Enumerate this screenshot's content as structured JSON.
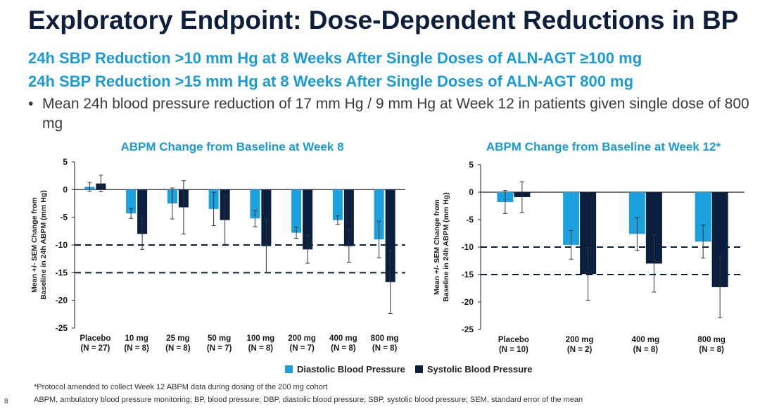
{
  "slide": {
    "title": "Exploratory Endpoint: Dose-Dependent Reductions in BP",
    "subtitle1": "24h SBP Reduction >10 mm Hg at 8 Weeks After Single Doses of ALN-AGT ≥100 mg",
    "subtitle2": "24h SBP Reduction >15 mm Hg at 8 Weeks After Single Doses of ALN-AGT 800 mg",
    "bullet_symbol": "•",
    "bullet": "Mean 24h blood pressure reduction of 17 mm Hg / 9 mm Hg at Week 12 in patients given single dose of 800 mg",
    "footnote": "*Protocol amended to collect Week 12 ABPM data during dosing of the 200 mg cohort",
    "abbreviations": "ABPM, ambulatory blood pressure monitoring; BP, blood pressure; DBP, diastolic blood pressure; SBP, systolic blood pressure; SEM, standard error of the mean",
    "page_number": "8"
  },
  "legend": {
    "diastolic": "Diastolic Blood Pressure",
    "systolic": "Systolic Blood Pressure"
  },
  "colors": {
    "diastolic": "#1ba1de",
    "systolic": "#0b1f3f",
    "title": "#0d1f3c",
    "accent": "#1a9ad6"
  },
  "chart_data": [
    {
      "type": "bar",
      "title": "ABPM Change from Baseline at Week 8",
      "ylabel_line1": "Mean +/- SEM Change from",
      "ylabel_line2": "Baseline in 24h ABPM (mm Hg)",
      "ylim": [
        -25,
        5
      ],
      "yticks": [
        5,
        0,
        -5,
        -10,
        -15,
        -20,
        -25
      ],
      "reference_lines": [
        -10,
        -15
      ],
      "categories": [
        "Placebo",
        "10 mg",
        "25 mg",
        "50 mg",
        "100 mg",
        "200 mg",
        "400 mg",
        "800 mg"
      ],
      "n_labels": [
        "(N = 27)",
        "(N = 8)",
        "(N = 8)",
        "(N = 7)",
        "(N = 8)",
        "(N = 7)",
        "(N = 8)",
        "(N = 8)"
      ],
      "series": [
        {
          "name": "Diastolic Blood Pressure",
          "values": [
            0.5,
            -4.3,
            -2.5,
            -3.5,
            -5.2,
            -7.8,
            -5.5,
            -9.0
          ],
          "sem": [
            0.8,
            0.9,
            2.8,
            3.0,
            1.5,
            1.0,
            0.8,
            3.3
          ]
        },
        {
          "name": "Systolic Blood Pressure",
          "values": [
            1.1,
            -8.0,
            -3.2,
            -5.5,
            -10.2,
            -10.8,
            -10.2,
            -16.7
          ],
          "sem": [
            1.5,
            2.8,
            4.8,
            4.4,
            4.8,
            2.5,
            2.9,
            5.7
          ]
        }
      ]
    },
    {
      "type": "bar",
      "title": "ABPM Change from Baseline at Week 12*",
      "ylabel_line1": "Mean +/- SEM Change from",
      "ylabel_line2": "Baseline in 24h ABPM (mm Hg)",
      "ylim": [
        -25,
        5
      ],
      "yticks": [
        5,
        0,
        -5,
        -10,
        -15,
        -20,
        -25
      ],
      "reference_lines": [
        -10,
        -15
      ],
      "categories": [
        "Placebo",
        "200 mg",
        "400 mg",
        "800 mg"
      ],
      "n_labels": [
        "(N = 10)",
        "(N = 2)",
        "(N = 8)",
        "(N = 8)"
      ],
      "series": [
        {
          "name": "Diastolic Blood Pressure",
          "values": [
            -1.8,
            -9.6,
            -7.6,
            -9.0
          ],
          "sem": [
            2.1,
            2.6,
            3.0,
            3.0
          ]
        },
        {
          "name": "Systolic Blood Pressure",
          "values": [
            -0.9,
            -14.9,
            -13.0,
            -17.3
          ],
          "sem": [
            2.8,
            4.8,
            5.2,
            5.6
          ]
        }
      ]
    }
  ]
}
